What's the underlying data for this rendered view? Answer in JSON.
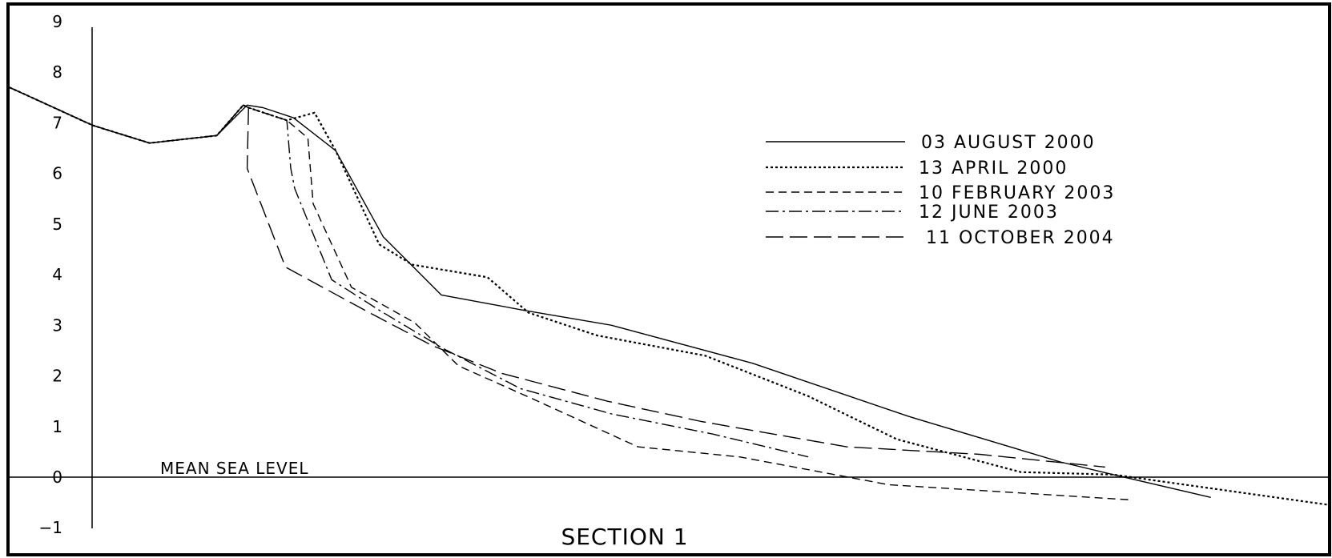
{
  "chart_data": {
    "type": "line",
    "title": "SECTION 1",
    "xlabel": "",
    "ylabel": "",
    "x_axis_range": [
      0,
      100
    ],
    "y_axis_range": [
      -1,
      9
    ],
    "y_ticks": [
      9,
      8,
      7,
      6,
      5,
      4,
      3,
      2,
      1,
      0,
      -1
    ],
    "grid": false,
    "legend_position": "top-right",
    "annotations": [
      {
        "text": "MEAN SEA LEVEL",
        "y": 0
      }
    ],
    "series": [
      {
        "name": "03 AUGUST 2000",
        "dash": "solid",
        "points": [
          [
            0,
            7.7
          ],
          [
            6.3,
            6.95
          ],
          [
            10.6,
            6.6
          ],
          [
            15.7,
            6.75
          ],
          [
            18,
            7.35
          ],
          [
            19.2,
            7.3
          ],
          [
            21.5,
            7.1
          ],
          [
            24.7,
            6.45
          ],
          [
            28.3,
            4.75
          ],
          [
            32.7,
            3.6
          ],
          [
            38.9,
            3.3
          ],
          [
            45.6,
            3.0
          ],
          [
            56.3,
            2.25
          ],
          [
            68.1,
            1.2
          ],
          [
            79.6,
            0.3
          ],
          [
            83.6,
            0.05
          ],
          [
            91,
            -0.4
          ]
        ]
      },
      {
        "name": "13 APRIL 2000",
        "dash": "dot",
        "points": [
          [
            0,
            7.7
          ],
          [
            6.3,
            6.95
          ],
          [
            10.6,
            6.6
          ],
          [
            15.7,
            6.75
          ],
          [
            17.7,
            7.35
          ],
          [
            18.1,
            7.3
          ],
          [
            21,
            7.05
          ],
          [
            23.1,
            7.2
          ],
          [
            24.7,
            6.45
          ],
          [
            28,
            4.6
          ],
          [
            30.5,
            4.2
          ],
          [
            36.2,
            3.95
          ],
          [
            39.3,
            3.25
          ],
          [
            44.5,
            2.8
          ],
          [
            52.7,
            2.4
          ],
          [
            60.5,
            1.6
          ],
          [
            67.2,
            0.75
          ],
          [
            76.6,
            0.1
          ],
          [
            83.6,
            0.05
          ],
          [
            100,
            -0.55
          ]
        ]
      },
      {
        "name": "10 FEBRUARY 2003",
        "dash": "dash",
        "points": [
          [
            0,
            7.7
          ],
          [
            6.3,
            6.95
          ],
          [
            10.6,
            6.6
          ],
          [
            15.7,
            6.75
          ],
          [
            17.7,
            7.35
          ],
          [
            18.1,
            7.3
          ],
          [
            21,
            7.05
          ],
          [
            22.6,
            6.7
          ],
          [
            23,
            5.4
          ],
          [
            25.9,
            3.75
          ],
          [
            30.7,
            3.05
          ],
          [
            34,
            2.2
          ],
          [
            39.6,
            1.55
          ],
          [
            47.6,
            0.6
          ],
          [
            55.3,
            0.4
          ],
          [
            62.5,
            0.05
          ],
          [
            66.6,
            -0.15
          ],
          [
            85.1,
            -0.45
          ]
        ]
      },
      {
        "name": "12 JUNE 2003",
        "dash": "dashdot",
        "points": [
          [
            0,
            7.7
          ],
          [
            6.3,
            6.95
          ],
          [
            10.6,
            6.6
          ],
          [
            15.7,
            6.75
          ],
          [
            17.7,
            7.35
          ],
          [
            18.1,
            7.3
          ],
          [
            21,
            7.05
          ],
          [
            21.3,
            6.1
          ],
          [
            21.6,
            5.7
          ],
          [
            24.4,
            3.9
          ],
          [
            28,
            3.3
          ],
          [
            32.8,
            2.55
          ],
          [
            38.7,
            1.75
          ],
          [
            45.6,
            1.25
          ],
          [
            53.3,
            0.85
          ],
          [
            60.5,
            0.4
          ]
        ]
      },
      {
        "name": "11 OCTOBER 2004",
        "dash": "longdash",
        "points": [
          [
            0,
            7.7
          ],
          [
            6.3,
            6.95
          ],
          [
            10.6,
            6.6
          ],
          [
            15.7,
            6.75
          ],
          [
            17.7,
            7.35
          ],
          [
            18.1,
            7.3
          ],
          [
            18,
            6.1
          ],
          [
            20.9,
            4.15
          ],
          [
            26.9,
            3.3
          ],
          [
            32,
            2.6
          ],
          [
            37.3,
            2.05
          ],
          [
            45.3,
            1.5
          ],
          [
            52.4,
            1.1
          ],
          [
            63.4,
            0.6
          ],
          [
            73.5,
            0.45
          ],
          [
            83,
            0.2
          ]
        ]
      }
    ]
  }
}
